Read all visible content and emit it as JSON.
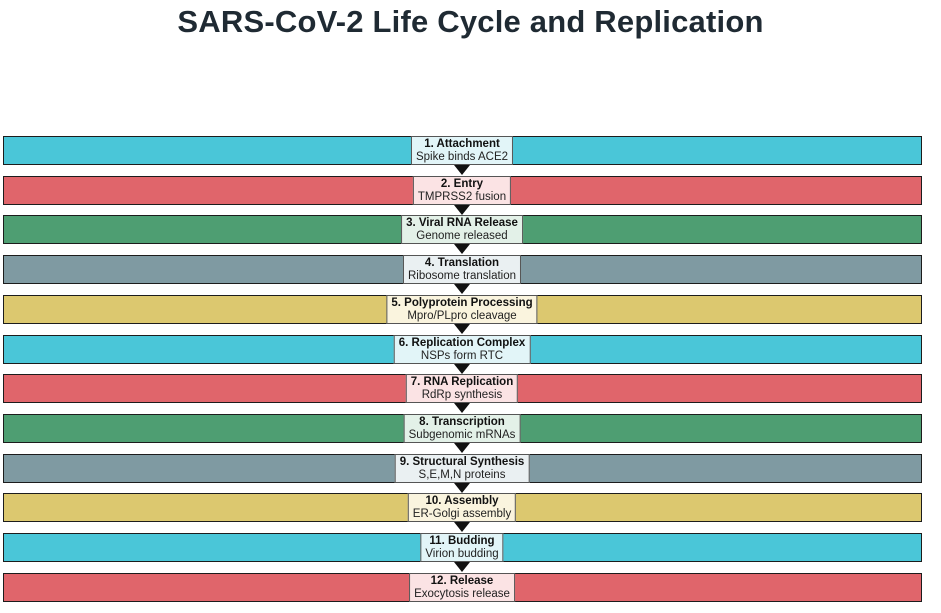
{
  "title": "SARS-CoV-2 Life Cycle and Replication",
  "colors": {
    "teal": "#4ac6d8",
    "red": "#e0656b",
    "green": "#4e9e72",
    "slate": "#7f9aa2",
    "gold": "#dcc86f",
    "teal_box": "#e2f5f8",
    "red_box": "#fbe3e4",
    "green_box": "#e3f1e8",
    "slate_box": "#eaf0f2",
    "gold_box": "#faf4de"
  },
  "stages": [
    {
      "name": "1. Attachment",
      "desc": "Spike binds ACE2",
      "color": "#4ac6d8",
      "box": "#e2f5f8"
    },
    {
      "name": "2. Entry",
      "desc": "TMPRSS2 fusion",
      "color": "#e0656b",
      "box": "#fbe3e4"
    },
    {
      "name": "3. Viral RNA Release",
      "desc": "Genome released",
      "color": "#4e9e72",
      "box": "#e3f1e8"
    },
    {
      "name": "4. Translation",
      "desc": "Ribosome translation",
      "color": "#7f9aa2",
      "box": "#eaf0f2"
    },
    {
      "name": "5. Polyprotein Processing",
      "desc": "Mpro/PLpro cleavage",
      "color": "#dcc86f",
      "box": "#faf4de"
    },
    {
      "name": "6. Replication Complex",
      "desc": "NSPs form RTC",
      "color": "#4ac6d8",
      "box": "#e2f5f8"
    },
    {
      "name": "7. RNA Replication",
      "desc": "RdRp synthesis",
      "color": "#e0656b",
      "box": "#fbe3e4"
    },
    {
      "name": "8. Transcription",
      "desc": "Subgenomic mRNAs",
      "color": "#4e9e72",
      "box": "#e3f1e8"
    },
    {
      "name": "9. Structural Synthesis",
      "desc": "S,E,M,N proteins",
      "color": "#7f9aa2",
      "box": "#eaf0f2"
    },
    {
      "name": "10. Assembly",
      "desc": "ER-Golgi assembly",
      "color": "#dcc86f",
      "box": "#faf4de"
    },
    {
      "name": "11. Budding",
      "desc": "Virion budding",
      "color": "#4ac6d8",
      "box": "#e2f5f8"
    },
    {
      "name": "12. Release",
      "desc": "Exocytosis release",
      "color": "#e0656b",
      "box": "#fbe3e4"
    }
  ]
}
